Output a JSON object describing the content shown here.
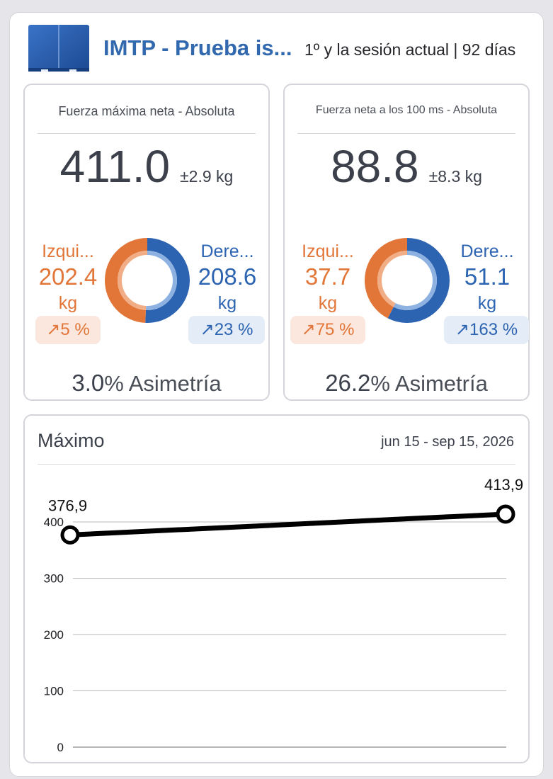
{
  "header": {
    "title": "IMTP - Prueba is...",
    "subtitle": "1º y la sesión actual | 92 días",
    "logo_icon": "blue-box-logo"
  },
  "metrics": [
    {
      "title": "Fuerza máxima neta - Absoluta",
      "value": "411.0",
      "error": "±2.9 kg",
      "left": {
        "label": "Izqui...",
        "value": "202.4",
        "unit": "kg",
        "change": "5 %",
        "share": 0.4924
      },
      "right": {
        "label": "Dere...",
        "value": "208.6",
        "unit": "kg",
        "change": "23 %"
      },
      "asymmetry_value": "3.0",
      "asymmetry_label": "% Asimetría"
    },
    {
      "title": "Fuerza neta a los 100 ms - Absoluta",
      "value": "88.8",
      "error": "±8.3 kg",
      "left": {
        "label": "Izqui...",
        "value": "37.7",
        "unit": "kg",
        "change": "75 %",
        "share": 0.4245
      },
      "right": {
        "label": "Dere...",
        "value": "51.1",
        "unit": "kg",
        "change": "163 %"
      },
      "asymmetry_value": "26.2",
      "asymmetry_label": "% Asimetría"
    }
  ],
  "colors": {
    "left": "#e27638",
    "right": "#2d64b1",
    "title": "#3168ae"
  },
  "chart": {
    "title": "Máximo",
    "date_range": "jun 15 - sep 15, 2026"
  },
  "chart_data": {
    "type": "line",
    "x": [
      "jun 15",
      "sep 15"
    ],
    "series": [
      {
        "values": [
          376.9,
          413.9
        ],
        "point_labels": [
          "376,9",
          "413,9"
        ]
      }
    ],
    "yticks": [
      "0",
      "100",
      "200",
      "300",
      "400"
    ],
    "ylim": [
      0,
      400
    ],
    "grid": true
  }
}
